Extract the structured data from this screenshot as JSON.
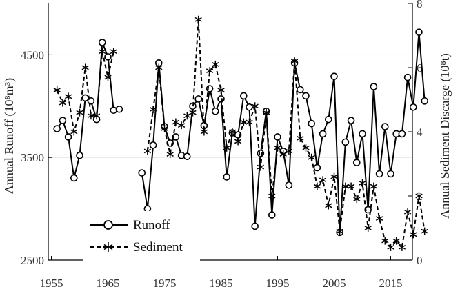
{
  "chart_data": {
    "type": "line",
    "xlabel": "",
    "ylabel": "Annual Runoff (10⁸m³)",
    "y2label": "Annual Sediment Discarge (10⁸t)",
    "xlim": [
      1955,
      2021
    ],
    "ylim": [
      2500,
      5000
    ],
    "y2lim": [
      0,
      8
    ],
    "x_ticks": [
      "1955",
      "1965",
      "1975",
      "1985",
      "1995",
      "2005",
      "2015"
    ],
    "y_ticks": [
      "2500",
      "3500",
      "4500"
    ],
    "y2_ticks": [
      "0",
      "2",
      "4",
      "6",
      "8"
    ],
    "grid": "horizontal",
    "legend": "bottom-left",
    "series": [
      {
        "name": "Runoff",
        "axis": "left",
        "style": "solid-circle",
        "x": [
          1956,
          1957,
          1958,
          1959,
          1960,
          1961,
          1962,
          1963,
          1964,
          1965,
          1966,
          1967,
          null,
          1971,
          1972,
          1973,
          1974,
          1975,
          1976,
          1977,
          1978,
          1979,
          1980,
          1981,
          1982,
          1983,
          1984,
          1985,
          1986,
          1987,
          1988,
          1989,
          1990,
          1991,
          1992,
          1993,
          1994,
          1995,
          1996,
          1997,
          1998,
          1999,
          2000,
          2001,
          2002,
          2003,
          2004,
          2005,
          2006,
          2007,
          2008,
          2009,
          2010,
          2011,
          2012,
          2013,
          2014,
          2015,
          2016,
          2017,
          2018,
          2019,
          2020,
          2021
        ],
        "values": [
          3780,
          3860,
          3700,
          3300,
          3520,
          4080,
          4050,
          3870,
          4620,
          4480,
          3960,
          3970,
          null,
          3350,
          3000,
          3620,
          4420,
          3800,
          3640,
          3700,
          3520,
          3510,
          4000,
          4070,
          3810,
          4170,
          3950,
          4070,
          3310,
          3740,
          3720,
          4100,
          3990,
          2830,
          3540,
          3950,
          2940,
          3700,
          3560,
          3230,
          4420,
          4160,
          4100,
          3830,
          3400,
          3730,
          3870,
          4290,
          2770,
          3650,
          3860,
          3450,
          3730,
          2990,
          4190,
          3340,
          3800,
          3340,
          3730,
          3730,
          4280,
          3990,
          4720,
          4050
        ]
      },
      {
        "name": "Sediment",
        "axis": "right",
        "style": "dashed-asterisk",
        "x": [
          1956,
          1957,
          1958,
          1959,
          1960,
          1961,
          1962,
          1963,
          1964,
          1965,
          1966,
          1967,
          null,
          1972,
          1973,
          1974,
          1975,
          1976,
          1977,
          1978,
          1979,
          1980,
          1981,
          1982,
          1983,
          1984,
          1985,
          1986,
          1987,
          1988,
          1989,
          1990,
          1991,
          1992,
          1993,
          1994,
          1995,
          1996,
          1997,
          1998,
          1999,
          2000,
          2001,
          2002,
          2003,
          2004,
          2005,
          2006,
          2007,
          2008,
          2009,
          2010,
          2011,
          2012,
          2013,
          2014,
          2015,
          2016,
          2017,
          2018,
          2019,
          2020,
          2021
        ],
        "values": [
          5.3,
          4.9,
          5.1,
          4.0,
          4.6,
          6.0,
          4.5,
          4.5,
          6.5,
          5.7,
          6.5,
          null,
          null,
          3.4,
          4.7,
          6.0,
          4.1,
          3.3,
          4.3,
          4.2,
          4.5,
          4.6,
          7.5,
          4.0,
          5.9,
          6.1,
          5.3,
          3.5,
          4.0,
          3.7,
          4.3,
          4.3,
          4.8,
          2.9,
          4.6,
          2.0,
          3.5,
          3.3,
          3.4,
          6.2,
          3.8,
          3.5,
          3.2,
          2.3,
          2.5,
          1.7,
          2.6,
          0.9,
          2.3,
          2.3,
          1.9,
          2.4,
          1.0,
          2.3,
          1.3,
          0.6,
          0.4,
          0.6,
          0.4,
          1.5,
          0.8,
          2.0,
          0.9
        ]
      }
    ]
  }
}
